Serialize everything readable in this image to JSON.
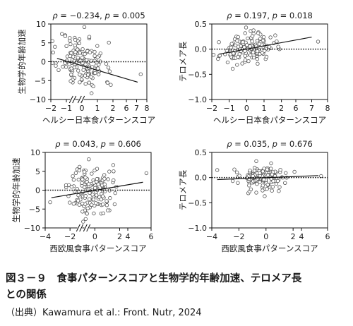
{
  "caption": {
    "line1": "図３－９　食事パターンスコアと生物学的年齢加速、テロメア長",
    "line2": "との関係",
    "source": "（出典）Kawamura et al.: Front. Nutr, 2024"
  },
  "chart_data": [
    {
      "type": "scatter",
      "stats": {
        "rho": "−0.234",
        "p": "0.005"
      },
      "xlabel": "ヘルシー日本食パターンスコア",
      "ylabel": "生物学的年齢加速",
      "xticks": [
        "−2",
        "−1",
        "0",
        "1",
        "2",
        "6",
        "7",
        "8"
      ],
      "yticks": [
        "10",
        "5",
        "0",
        "−5",
        "−10"
      ],
      "ylim": [
        -10,
        10
      ],
      "reference_line_y": 0,
      "axis_break": "x, between 2.5 and 6",
      "trend": {
        "x": [
          -1.6,
          7.1
        ],
        "y": [
          0.9,
          -5.4
        ]
      },
      "outliers": [
        {
          "x": 7.4,
          "y": -3.3
        }
      ],
      "seed": 11,
      "n": 150,
      "cloud": {
        "mx": 0,
        "sx": 0.75,
        "my": 0,
        "sy": 3.6,
        "slope": -1.2,
        "xrange": [
          -1.9,
          2.4
        ]
      }
    },
    {
      "type": "scatter",
      "stats": {
        "rho": "0.197",
        "p": "0.018"
      },
      "xlabel": "ヘルシー日本食パターンスコア",
      "ylabel": "テロメア長",
      "xticks": [
        "−2",
        "−1",
        "0",
        "1",
        "2",
        "6",
        "7",
        "8"
      ],
      "yticks": [
        "0.5",
        "0.0",
        "−0.5",
        "−1.0"
      ],
      "ylim": [
        -1.0,
        0.5
      ],
      "reference_line_y": 0,
      "axis_break": "x, between 2.5 and 6",
      "trend": {
        "x": [
          -1.6,
          7.0
        ],
        "y": [
          -0.1,
          0.24
        ]
      },
      "outliers": [
        {
          "x": 7.4,
          "y": 0.15
        }
      ],
      "seed": 23,
      "n": 145,
      "cloud": {
        "mx": 0,
        "sx": 0.75,
        "my": 0.0,
        "sy": 0.14,
        "slope": 0.04,
        "xrange": [
          -1.9,
          2.4
        ]
      }
    },
    {
      "type": "scatter",
      "stats": {
        "rho": "0.043",
        "p": "0.606"
      },
      "xlabel": "西欧風食事パターンスコア",
      "ylabel": "生物学的年齢加速",
      "xticks": [
        "−4",
        "−2",
        "0",
        "2",
        "4",
        "6"
      ],
      "yticks": [
        "10",
        "5",
        "0",
        "−5",
        "−10"
      ],
      "ylim": [
        -10,
        10
      ],
      "reference_line_y": 0,
      "axis_break": "x, between 2.2 and 4",
      "trend": {
        "x": [
          -3.5,
          5.3
        ],
        "y": [
          -2.0,
          2.1
        ]
      },
      "outliers": [
        {
          "x": 5.6,
          "y": 4.5
        },
        {
          "x": -3.6,
          "y": -3.2
        }
      ],
      "seed": 37,
      "n": 150,
      "cloud": {
        "mx": -0.3,
        "sx": 0.85,
        "my": 0,
        "sy": 3.4,
        "slope": 0.35,
        "xrange": [
          -3.3,
          2.1
        ]
      }
    },
    {
      "type": "scatter",
      "stats": {
        "rho": "0.035",
        "p": "0.676"
      },
      "xlabel": "西欧風食事パターンスコア",
      "ylabel": "テロメア長",
      "xticks": [
        "−4",
        "−2",
        "0",
        "2",
        "4",
        "6"
      ],
      "yticks": [
        "0.5",
        "0.0",
        "−0.5",
        "−1.0"
      ],
      "ylim": [
        -1.0,
        0.5
      ],
      "reference_line_y": 0,
      "axis_break": "x, between 2.2 and 4",
      "trend": {
        "x": [
          -3.6,
          5.3
        ],
        "y": [
          -0.04,
          0.04
        ]
      },
      "outliers": [
        {
          "x": -3.6,
          "y": 0.15
        },
        {
          "x": 5.5,
          "y": 0.03
        }
      ],
      "seed": 53,
      "n": 145,
      "cloud": {
        "mx": -0.2,
        "sx": 0.85,
        "my": 0.0,
        "sy": 0.13,
        "slope": 0.0,
        "xrange": [
          -3.3,
          2.1
        ]
      }
    }
  ]
}
